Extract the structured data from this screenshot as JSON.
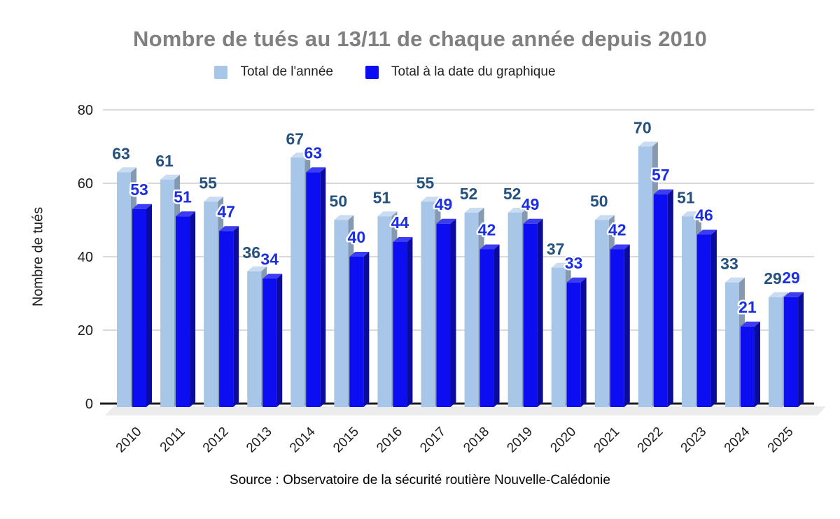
{
  "title": "Nombre de tués au 13/11 de chaque année depuis 2010",
  "source": "Source : Observatoire de la sécurité routière Nouvelle-Calédonie",
  "colors": {
    "title_gray": "#808080",
    "grid": "#d9d9d9",
    "axis_line": "#1c1c1c",
    "floor": "#ececec",
    "light_front": "#a7c6e8",
    "light_top": "#c9dcf1",
    "light_side": "#8599b0",
    "dark_front": "#0d0df2",
    "dark_top": "#3c3cf2",
    "dark_side": "#0b0b9e",
    "light_label": "#24517e",
    "dark_label": "#1b2fe1"
  },
  "chart_data": {
    "type": "bar",
    "title": "Nombre de tués au 13/11 de chaque année depuis 2010",
    "xlabel": "",
    "ylabel": "Nombre de tués",
    "ylim": [
      0,
      80
    ],
    "yticks": [
      0,
      20,
      40,
      60,
      80
    ],
    "grid": true,
    "legend_position": "top",
    "categories": [
      "2010",
      "2011",
      "2012",
      "2013",
      "2014",
      "2015",
      "2016",
      "2017",
      "2018",
      "2019",
      "2020",
      "2021",
      "2022",
      "2023",
      "2024",
      "2025"
    ],
    "series": [
      {
        "name": "Total de l'année",
        "color": "#a7c6e8",
        "label_color": "#24517e",
        "values": [
          63,
          61,
          55,
          36,
          67,
          50,
          51,
          55,
          52,
          52,
          37,
          50,
          70,
          51,
          33,
          29
        ]
      },
      {
        "name": "Total à la date du graphique",
        "color": "#0d0df2",
        "label_color": "#1b2fe1",
        "values": [
          53,
          51,
          47,
          34,
          63,
          40,
          44,
          49,
          42,
          49,
          33,
          42,
          57,
          46,
          21,
          29
        ]
      }
    ]
  }
}
